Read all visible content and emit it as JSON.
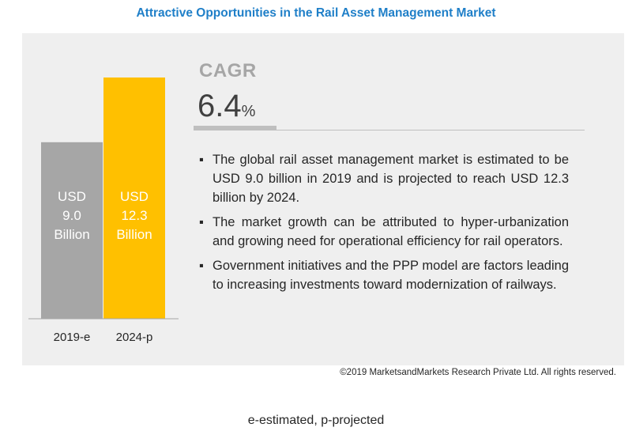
{
  "title": "Attractive Opportunities in the Rail Asset Management Market",
  "cagr": {
    "label": "CAGR",
    "value": "6.4",
    "unit": "%"
  },
  "bullets": [
    "The global rail asset management market is estimated to be USD 9.0 billion in 2019 and is projected to reach USD 12.3 billion by 2024.",
    "The market growth can be attributed to hyper-urbanization and growing need for operational efficiency for rail operators.",
    "Government initiatives and the PPP model are factors leading to increasing investments toward modernization of railways."
  ],
  "copyright": "©2019 MarketsandMarkets Research Private Ltd. All rights reserved.",
  "note": "e-estimated, p-projected",
  "chart_data": {
    "type": "bar",
    "categories": [
      "2019-e",
      "2024-p"
    ],
    "values": [
      9.0,
      12.3
    ],
    "data_labels": [
      [
        "USD",
        "9.0",
        "Billion"
      ],
      [
        "USD",
        "12.3",
        "Billion"
      ]
    ],
    "colors": [
      "#a6a6a6",
      "#ffc000"
    ],
    "label_colors": [
      "#ffffff",
      "#ffffff"
    ],
    "axis_color": "#a6a6a6",
    "ylim": [
      0,
      12.3
    ],
    "grid": false
  }
}
